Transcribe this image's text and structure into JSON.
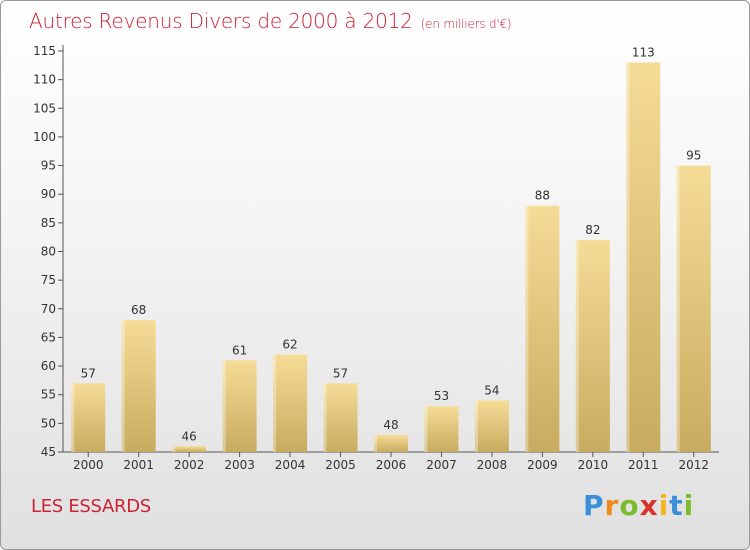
{
  "chart_data": {
    "type": "bar",
    "title": "Autres Revenus Divers de 2000 à 2012",
    "subtitle": "(en milliers d'€)",
    "categories": [
      "2000",
      "2001",
      "2002",
      "2003",
      "2004",
      "2005",
      "2006",
      "2007",
      "2008",
      "2009",
      "2010",
      "2011",
      "2012"
    ],
    "values": [
      57,
      68,
      46,
      61,
      62,
      57,
      48,
      53,
      54,
      88,
      82,
      113,
      95
    ],
    "ylim": [
      45,
      115
    ],
    "yticks": [
      45,
      50,
      55,
      60,
      65,
      70,
      75,
      80,
      85,
      90,
      95,
      100,
      105,
      110,
      115
    ],
    "grid": false,
    "colors": {
      "bar_light": "#f5dc97",
      "bar_dark": "#c8ab5f",
      "title": "#cc2233"
    }
  },
  "footer": {
    "place": "LES ESSARDS",
    "logo_letters": [
      "P",
      "r",
      "o",
      "x",
      "i",
      "t",
      "i"
    ],
    "logo_colors": [
      "#3a8fd8",
      "#f08a1c",
      "#7cbd2e",
      "#d8322c",
      "#f5b51e",
      "#3a8fd8",
      "#7cbd2e"
    ]
  }
}
